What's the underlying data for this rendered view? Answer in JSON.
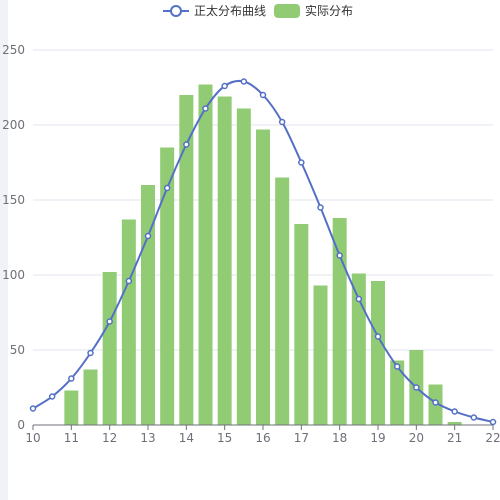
{
  "chart_data": {
    "type": "bar",
    "xlim": [
      10,
      22
    ],
    "ylim": [
      0,
      250
    ],
    "x_ticks": [
      "10",
      "11",
      "12",
      "13",
      "14",
      "15",
      "16",
      "17",
      "18",
      "19",
      "20",
      "21",
      "22"
    ],
    "y_ticks": [
      "0",
      "50",
      "100",
      "150",
      "200",
      "250"
    ],
    "grid": true,
    "legend_position": "top-center",
    "series": [
      {
        "name": "正太分布曲线",
        "type": "line",
        "smooth": true,
        "color": "#5470c6",
        "x": [
          10,
          10.5,
          11,
          11.5,
          12,
          12.5,
          13,
          13.5,
          14,
          14.5,
          15,
          15.5,
          16,
          16.5,
          17,
          17.5,
          18,
          18.5,
          19,
          19.5,
          20,
          20.5,
          21,
          21.5,
          22
        ],
        "y": [
          11,
          19,
          31,
          48,
          69,
          96,
          126,
          158,
          187,
          211,
          226,
          229,
          220,
          202,
          175,
          145,
          113,
          84,
          59,
          39,
          25,
          15,
          9,
          5,
          2
        ]
      },
      {
        "name": "实际分布",
        "type": "bar",
        "color": "#91cc75",
        "x": [
          11,
          11.5,
          12,
          12.5,
          13,
          13.5,
          14,
          14.5,
          15,
          15.5,
          16,
          16.5,
          17,
          17.5,
          18,
          18.5,
          19,
          19.5,
          20,
          20.5,
          21
        ],
        "y": [
          23,
          37,
          102,
          137,
          160,
          185,
          220,
          227,
          219,
          211,
          197,
          165,
          134,
          93,
          138,
          101,
          96,
          43,
          50,
          27,
          2
        ]
      }
    ]
  }
}
